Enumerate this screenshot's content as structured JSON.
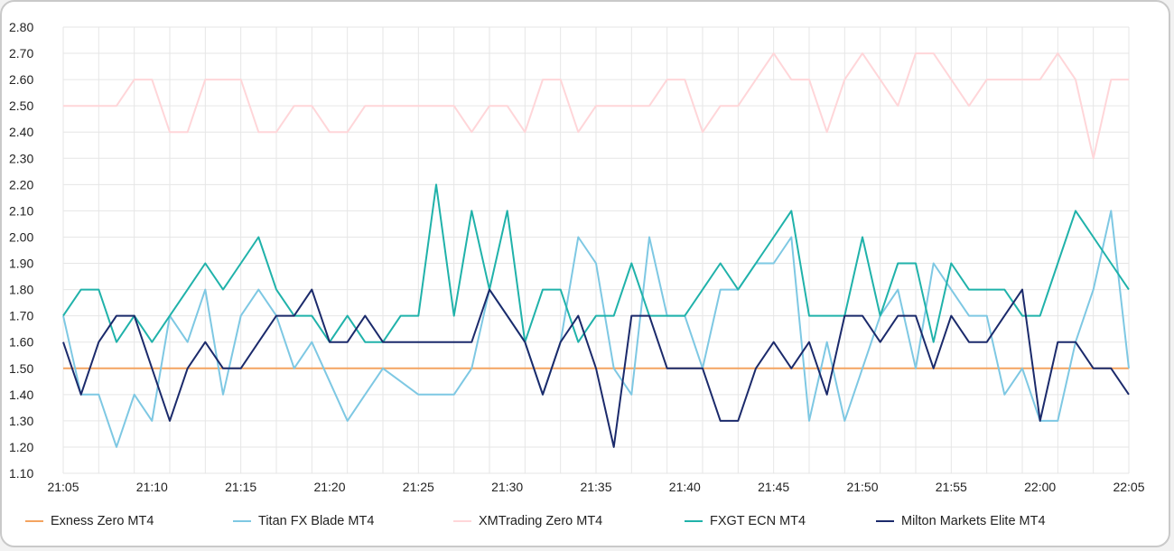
{
  "chart_data": {
    "type": "line",
    "title": "",
    "xlabel": "",
    "ylabel": "",
    "ylim": [
      1.1,
      2.8
    ],
    "y_ticks": [
      "1.10",
      "1.20",
      "1.30",
      "1.40",
      "1.50",
      "1.60",
      "1.70",
      "1.80",
      "1.90",
      "2.00",
      "2.10",
      "2.20",
      "2.30",
      "2.40",
      "2.50",
      "2.60",
      "2.70",
      "2.80"
    ],
    "x_ticks": [
      "21:05",
      "21:10",
      "21:15",
      "21:20",
      "21:25",
      "21:30",
      "21:35",
      "21:40",
      "21:45",
      "21:50",
      "21:55",
      "22:00",
      "22:05"
    ],
    "x_start": "21:05",
    "x_end": "22:05",
    "grid": true,
    "legend_position": "bottom",
    "series": [
      {
        "name": "Exness Zero MT4",
        "color": "#f4a460",
        "values": [
          1.5,
          1.5,
          1.5,
          1.5,
          1.5,
          1.5,
          1.5,
          1.5,
          1.5,
          1.5,
          1.5,
          1.5,
          1.5,
          1.5,
          1.5,
          1.5,
          1.5,
          1.5,
          1.5,
          1.5,
          1.5,
          1.5,
          1.5,
          1.5,
          1.5,
          1.5,
          1.5,
          1.5,
          1.5,
          1.5,
          1.5,
          1.5,
          1.5,
          1.5,
          1.5,
          1.5,
          1.5,
          1.5,
          1.5,
          1.5,
          1.5,
          1.5,
          1.5,
          1.5,
          1.5,
          1.5,
          1.5,
          1.5,
          1.5,
          1.5,
          1.5,
          1.5,
          1.5,
          1.5,
          1.5,
          1.5,
          1.5,
          1.5,
          1.5,
          1.5,
          1.5
        ]
      },
      {
        "name": "Titan FX Blade MT4",
        "color": "#7ec8e3",
        "values": [
          1.7,
          1.4,
          1.4,
          1.2,
          1.4,
          1.3,
          1.7,
          1.6,
          1.8,
          1.4,
          1.7,
          1.8,
          1.7,
          1.5,
          1.6,
          1.45,
          1.3,
          1.4,
          1.5,
          1.45,
          1.4,
          1.4,
          1.4,
          1.5,
          1.8,
          1.7,
          1.6,
          1.4,
          1.6,
          2.0,
          1.9,
          1.5,
          1.4,
          2.0,
          1.7,
          1.7,
          1.5,
          1.8,
          1.8,
          1.9,
          1.9,
          2.0,
          1.3,
          1.6,
          1.3,
          1.5,
          1.7,
          1.8,
          1.5,
          1.9,
          1.8,
          1.7,
          1.7,
          1.4,
          1.5,
          1.3,
          1.3,
          1.6,
          1.8,
          2.1,
          1.5
        ]
      },
      {
        "name": "XMTrading Zero MT4",
        "color": "#ffd6d9",
        "values": [
          2.5,
          2.5,
          2.5,
          2.5,
          2.6,
          2.6,
          2.4,
          2.4,
          2.6,
          2.6,
          2.6,
          2.4,
          2.4,
          2.5,
          2.5,
          2.4,
          2.4,
          2.5,
          2.5,
          2.5,
          2.5,
          2.5,
          2.5,
          2.4,
          2.5,
          2.5,
          2.4,
          2.6,
          2.6,
          2.4,
          2.5,
          2.5,
          2.5,
          2.5,
          2.6,
          2.6,
          2.4,
          2.5,
          2.5,
          2.6,
          2.7,
          2.6,
          2.6,
          2.4,
          2.6,
          2.7,
          2.6,
          2.5,
          2.7,
          2.7,
          2.6,
          2.5,
          2.6,
          2.6,
          2.6,
          2.6,
          2.7,
          2.6,
          2.3,
          2.6,
          2.6
        ]
      },
      {
        "name": "FXGT ECN MT4",
        "color": "#20b2aa",
        "values": [
          1.7,
          1.8,
          1.8,
          1.6,
          1.7,
          1.6,
          1.7,
          1.8,
          1.9,
          1.8,
          1.9,
          2.0,
          1.8,
          1.7,
          1.7,
          1.6,
          1.7,
          1.6,
          1.6,
          1.7,
          1.7,
          2.2,
          1.7,
          2.1,
          1.8,
          2.1,
          1.6,
          1.8,
          1.8,
          1.6,
          1.7,
          1.7,
          1.9,
          1.7,
          1.7,
          1.7,
          1.8,
          1.9,
          1.8,
          1.9,
          2.0,
          2.1,
          1.7,
          1.7,
          1.7,
          2.0,
          1.7,
          1.9,
          1.9,
          1.6,
          1.9,
          1.8,
          1.8,
          1.8,
          1.7,
          1.7,
          1.9,
          2.1,
          2.0,
          1.9,
          1.8
        ]
      },
      {
        "name": "Milton Markets Elite MT4",
        "color": "#1b2a6b",
        "values": [
          1.6,
          1.4,
          1.6,
          1.7,
          1.7,
          1.5,
          1.3,
          1.5,
          1.6,
          1.5,
          1.5,
          1.6,
          1.7,
          1.7,
          1.8,
          1.6,
          1.6,
          1.7,
          1.6,
          1.6,
          1.6,
          1.6,
          1.6,
          1.6,
          1.8,
          1.7,
          1.6,
          1.4,
          1.6,
          1.7,
          1.5,
          1.2,
          1.7,
          1.7,
          1.5,
          1.5,
          1.5,
          1.3,
          1.3,
          1.5,
          1.6,
          1.5,
          1.6,
          1.4,
          1.7,
          1.7,
          1.6,
          1.7,
          1.7,
          1.5,
          1.7,
          1.6,
          1.6,
          1.7,
          1.8,
          1.3,
          1.6,
          1.6,
          1.5,
          1.5,
          1.4
        ]
      }
    ]
  }
}
